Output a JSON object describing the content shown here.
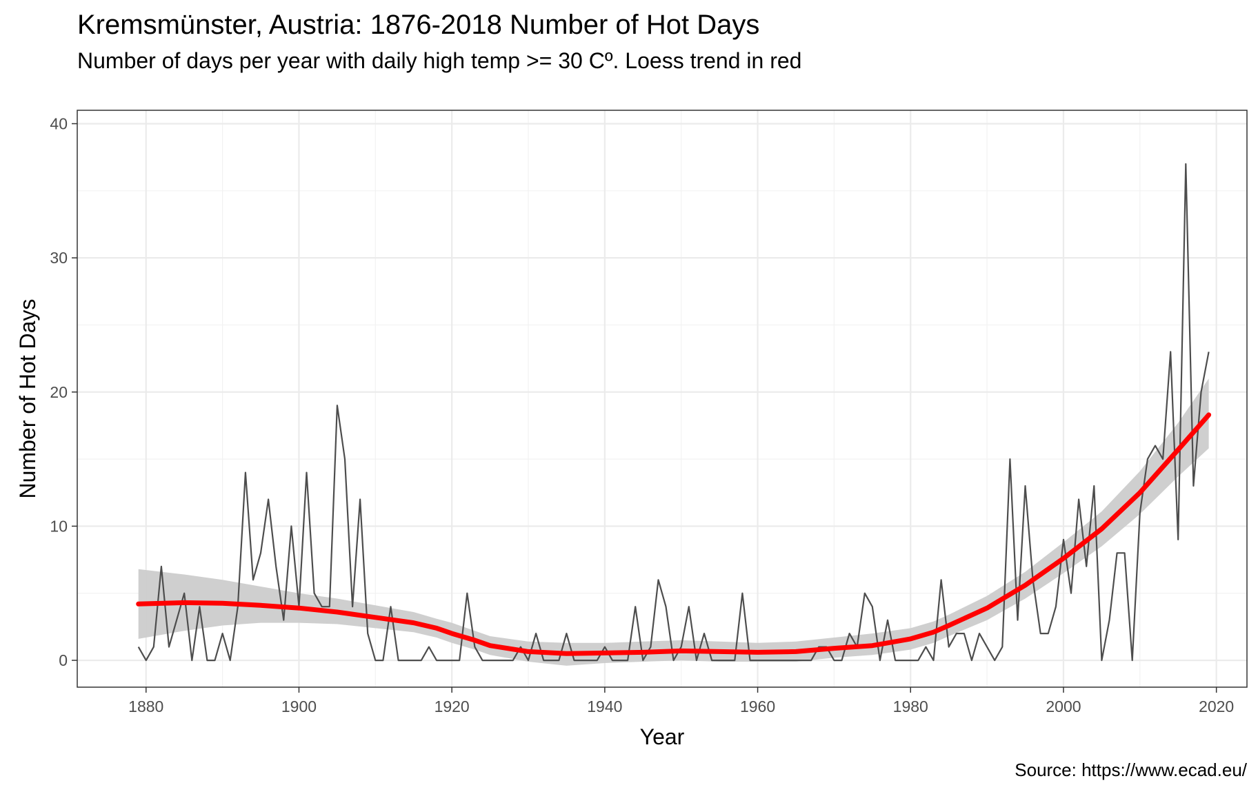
{
  "chart_data": {
    "type": "line",
    "title": "Kremsmünster, Austria: 1876-2018 Number of Hot Days",
    "subtitle": "Number of days per year with daily high temp >= 30 Cº. Loess trend in red",
    "caption": "Source: https://www.ecad.eu/",
    "xlabel": "Year",
    "ylabel": "Number of Hot Days",
    "xlim": [
      1871,
      2024
    ],
    "ylim": [
      -2,
      41
    ],
    "x_ticks": [
      1880,
      1900,
      1920,
      1940,
      1960,
      1980,
      2000,
      2020
    ],
    "y_ticks": [
      0,
      10,
      20,
      30,
      40
    ],
    "grid": true,
    "series": [
      {
        "color": "#4d4d4d",
        "x": [
          1879,
          1880,
          1881,
          1882,
          1883,
          1884,
          1885,
          1886,
          1887,
          1888,
          1889,
          1890,
          1891,
          1892,
          1893,
          1894,
          1895,
          1896,
          1897,
          1898,
          1899,
          1900,
          1901,
          1902,
          1903,
          1904,
          1905,
          1906,
          1907,
          1908,
          1909,
          1910,
          1911,
          1912,
          1913,
          1914,
          1915,
          1916,
          1917,
          1918,
          1919,
          1920,
          1921,
          1922,
          1923,
          1924,
          1925,
          1926,
          1927,
          1928,
          1929,
          1930,
          1931,
          1932,
          1933,
          1934,
          1935,
          1936,
          1937,
          1938,
          1939,
          1940,
          1941,
          1942,
          1943,
          1944,
          1945,
          1946,
          1947,
          1948,
          1949,
          1950,
          1951,
          1952,
          1953,
          1954,
          1955,
          1956,
          1957,
          1958,
          1959,
          1960,
          1961,
          1962,
          1963,
          1964,
          1965,
          1966,
          1967,
          1968,
          1969,
          1970,
          1971,
          1972,
          1973,
          1974,
          1975,
          1976,
          1977,
          1978,
          1979,
          1980,
          1981,
          1982,
          1983,
          1984,
          1985,
          1986,
          1987,
          1988,
          1989,
          1990,
          1991,
          1992,
          1993,
          1994,
          1995,
          1996,
          1997,
          1998,
          1999,
          2000,
          2001,
          2002,
          2003,
          2004,
          2005,
          2006,
          2007,
          2008,
          2009,
          2010,
          2011,
          2012,
          2013,
          2014,
          2015,
          2016,
          2017,
          2018,
          2019
        ],
        "values": [
          1,
          0,
          1,
          7,
          1,
          3,
          5,
          0,
          4,
          0,
          0,
          2,
          0,
          4,
          14,
          6,
          8,
          12,
          7,
          3,
          10,
          4,
          14,
          5,
          4,
          4,
          19,
          15,
          4,
          12,
          2,
          0,
          0,
          4,
          0,
          0,
          0,
          0,
          1,
          0,
          0,
          0,
          0,
          5,
          1,
          0,
          0,
          0,
          0,
          0,
          1,
          0,
          2,
          0,
          0,
          0,
          2,
          0,
          0,
          0,
          0,
          1,
          0,
          0,
          0,
          4,
          0,
          1,
          6,
          4,
          0,
          1,
          4,
          0,
          2,
          0,
          0,
          0,
          0,
          5,
          0,
          0,
          0,
          0,
          0,
          0,
          0,
          0,
          0,
          1,
          1,
          0,
          0,
          2,
          1,
          5,
          4,
          0,
          3,
          0,
          0,
          0,
          0,
          1,
          0,
          6,
          1,
          2,
          2,
          0,
          2,
          1,
          0,
          1,
          15,
          3,
          13,
          6,
          2,
          2,
          4,
          9,
          5,
          12,
          7,
          13,
          0,
          3,
          8,
          8,
          0,
          11,
          15,
          16,
          15,
          23,
          9,
          37,
          13,
          20,
          23
        ]
      },
      {
        "type": "loess",
        "color": "#ff0000",
        "band_color": "#cccccc",
        "x": [
          1879,
          1885,
          1890,
          1895,
          1900,
          1905,
          1910,
          1915,
          1918,
          1920,
          1923,
          1925,
          1930,
          1935,
          1940,
          1945,
          1950,
          1955,
          1960,
          1965,
          1970,
          1975,
          1980,
          1983,
          1985,
          1990,
          1995,
          2000,
          2005,
          2010,
          2015,
          2019
        ],
        "values": [
          4.2,
          4.3,
          4.25,
          4.1,
          3.9,
          3.6,
          3.2,
          2.8,
          2.4,
          2.0,
          1.5,
          1.1,
          0.65,
          0.5,
          0.55,
          0.6,
          0.7,
          0.65,
          0.6,
          0.65,
          0.9,
          1.1,
          1.6,
          2.1,
          2.6,
          3.9,
          5.6,
          7.6,
          9.8,
          12.5,
          15.7,
          18.3
        ],
        "band_lower": [
          1.6,
          2.2,
          2.6,
          2.8,
          2.8,
          2.7,
          2.4,
          2.1,
          1.7,
          1.3,
          0.8,
          0.4,
          -0.1,
          -0.4,
          -0.2,
          -0.1,
          0.0,
          -0.1,
          -0.1,
          -0.1,
          0.2,
          0.4,
          0.8,
          1.3,
          1.8,
          3.0,
          4.6,
          6.5,
          8.5,
          10.9,
          13.7,
          15.8
        ],
        "band_upper": [
          6.8,
          6.4,
          6.0,
          5.5,
          5.0,
          4.6,
          4.1,
          3.6,
          3.1,
          2.8,
          2.2,
          1.8,
          1.4,
          1.3,
          1.3,
          1.4,
          1.5,
          1.4,
          1.3,
          1.4,
          1.7,
          2.0,
          2.4,
          2.9,
          3.4,
          4.8,
          6.6,
          8.8,
          11.1,
          14.1,
          17.7,
          21.0
        ]
      }
    ]
  }
}
